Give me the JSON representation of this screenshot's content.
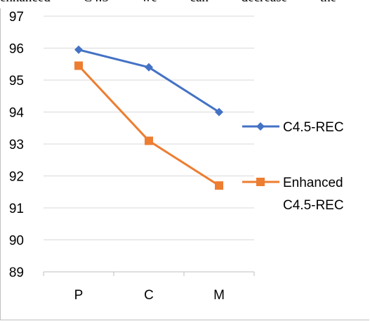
{
  "cropped_text": "enhanced C4.5 we can decrease the",
  "chart_data": {
    "type": "line",
    "categories": [
      "P",
      "C",
      "M"
    ],
    "series": [
      {
        "name": "C4.5-REC",
        "values": [
          95.95,
          95.4,
          94.0
        ],
        "color": "#4472c4",
        "marker": "diamond"
      },
      {
        "name": "Enhanced C4.5-REC",
        "values": [
          95.45,
          93.1,
          91.7
        ],
        "color": "#ed7d31",
        "marker": "square"
      }
    ],
    "ylim": [
      89,
      97
    ],
    "yticks": [
      89,
      90,
      91,
      92,
      93,
      94,
      95,
      96,
      97
    ],
    "grid": true,
    "legend": "right",
    "title": "",
    "xlabel": "",
    "ylabel": ""
  },
  "legend": {
    "entries": [
      {
        "lines": [
          "C4.5-REC"
        ]
      },
      {
        "lines": [
          "Enhanced",
          "C4.5-REC"
        ]
      }
    ]
  }
}
